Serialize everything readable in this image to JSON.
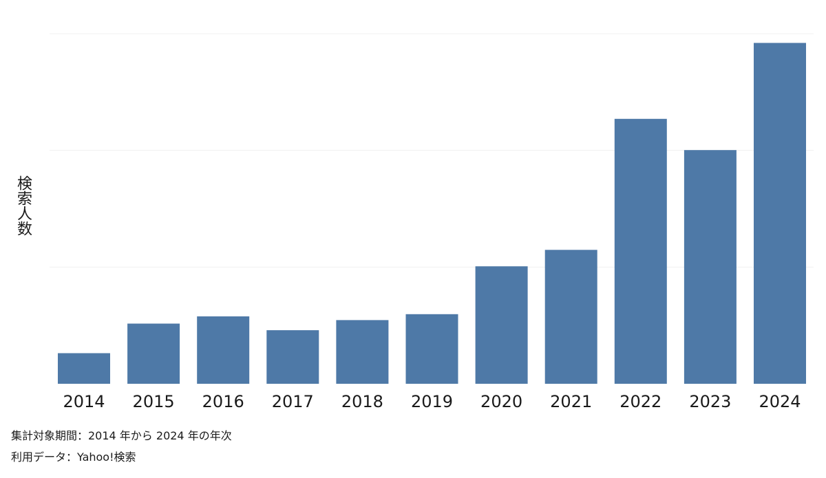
{
  "chart_data": {
    "type": "bar",
    "ylabel": "検索人数",
    "categories": [
      "2014",
      "2015",
      "2016",
      "2017",
      "2018",
      "2019",
      "2020",
      "2021",
      "2022",
      "2023",
      "2024"
    ],
    "values": [
      14,
      27.5,
      30.8,
      24.5,
      29.1,
      31.8,
      53.7,
      61.2,
      121.1,
      106.8,
      155.8
    ],
    "ylim": [
      0,
      160
    ],
    "grid": true,
    "bar_color": "#4e79a7"
  },
  "footnotes": {
    "period": "集計対象期間：2014 年から 2024 年の年次",
    "source": "利用データ：Yahoo!検索"
  }
}
